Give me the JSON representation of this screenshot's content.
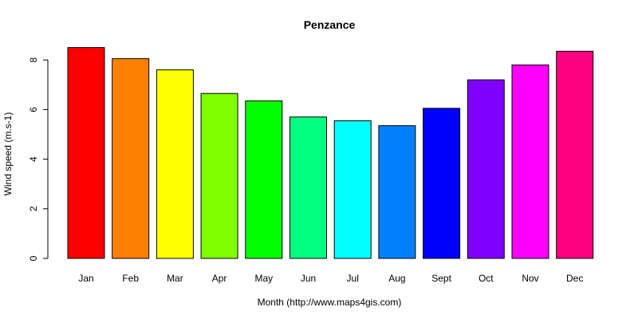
{
  "chart_data": {
    "type": "bar",
    "title": "Penzance",
    "xlabel": "Month (http://www.maps4gis.com)",
    "ylabel": "Wind speed (m.s-1)",
    "categories": [
      "Jan",
      "Feb",
      "Mar",
      "Apr",
      "May",
      "Jun",
      "Jul",
      "Aug",
      "Sept",
      "Oct",
      "Nov",
      "Dec"
    ],
    "values": [
      8.5,
      8.05,
      7.6,
      6.65,
      6.35,
      5.7,
      5.55,
      5.35,
      6.05,
      7.2,
      7.8,
      8.35
    ],
    "colors": [
      "#FF0000",
      "#FF8000",
      "#FFFF00",
      "#80FF00",
      "#00FF00",
      "#00FF80",
      "#00FFFF",
      "#0080FF",
      "#0000FF",
      "#8000FF",
      "#FF00FF",
      "#FF0080"
    ],
    "ylim": [
      0,
      8.5
    ],
    "yticks": [
      0,
      2,
      4,
      6,
      8
    ],
    "grid": false,
    "legend": "none"
  }
}
